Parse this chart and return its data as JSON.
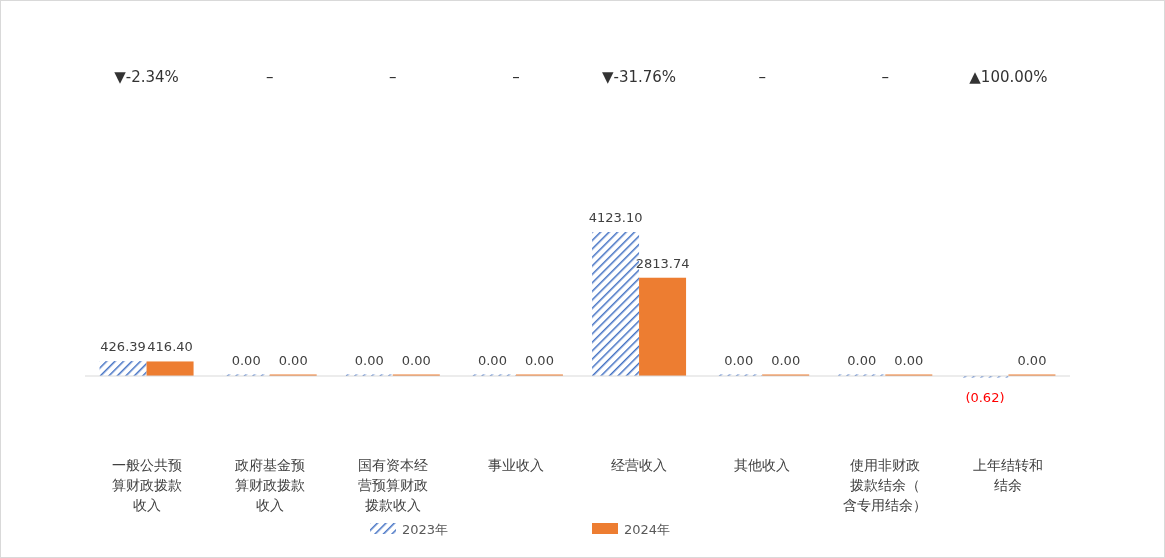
{
  "chart_data": {
    "type": "bar",
    "categories": [
      "一般公共预算财政拨款收入",
      "政府基金预算财政拨款收入",
      "国有资本经营预算财政拨款收入",
      "事业收入",
      "经营收入",
      "其他收入",
      "使用非财政拨款结余（含专用结余）",
      "上年结转和结余"
    ],
    "series": [
      {
        "name": "2023年",
        "color": "#4472c4",
        "values": [
          426.39,
          0,
          0,
          0,
          4123.1,
          0,
          0,
          -0.62
        ],
        "value_labels": [
          "426.39",
          "0.00",
          "0.00",
          "0.00",
          "4123.10",
          "0.00",
          "0.00",
          "(0.62)"
        ]
      },
      {
        "name": "2024年",
        "color": "#ed7d31",
        "values": [
          416.4,
          0,
          0,
          0,
          2813.74,
          0,
          0,
          0
        ],
        "value_labels": [
          "416.40",
          "0.00",
          "0.00",
          "0.00",
          "2813.74",
          "0.00",
          "0.00",
          "0.00"
        ]
      }
    ],
    "annotations": [
      "▼-2.34%",
      "–",
      "–",
      "–",
      "▼-31.76%",
      "–",
      "–",
      "▲100.00%"
    ],
    "legend": "bottom"
  }
}
